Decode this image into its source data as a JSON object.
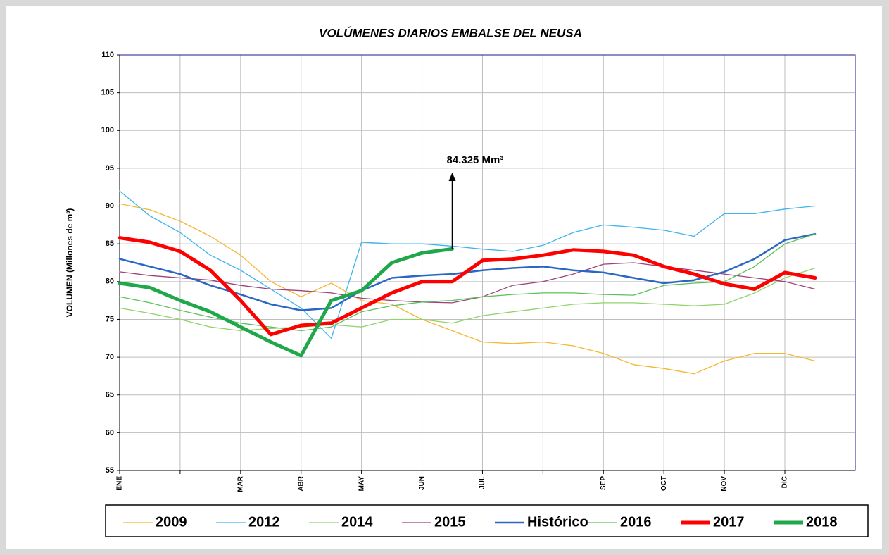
{
  "chart_data": {
    "type": "line",
    "title": "VOLÚMENES DIARIOS EMBALSE DEL NEUSA",
    "y_label": "VOLUMEN (Millones de m³)",
    "categories": [
      "ENE",
      null,
      null,
      null,
      "MAR",
      null,
      "ABR",
      null,
      "MAY",
      null,
      "JUN",
      null,
      "JUL",
      null,
      null,
      null,
      "SEP",
      null,
      "OCT",
      null,
      "NOV",
      null,
      "DIC",
      null
    ],
    "series": [
      {
        "name": "2009",
        "color": "#f5b731",
        "line_width": 1.3,
        "values": [
          90.3,
          89.5,
          88,
          86,
          83.5,
          80,
          78,
          79.8,
          77.5,
          77,
          75,
          73.5,
          72,
          71.8,
          72,
          71.5,
          70.5,
          69,
          68.5,
          67.8,
          69.5,
          70.5,
          70.5,
          69.5
        ]
      },
      {
        "name": "2012",
        "color": "#3cb4ef",
        "line_width": 1.3,
        "values": [
          92,
          88.7,
          86.5,
          83.5,
          81.5,
          79,
          76.5,
          72.5,
          85.2,
          85,
          85,
          84.7,
          84.3,
          84,
          84.8,
          86.5,
          87.5,
          87.2,
          86.8,
          86,
          89,
          89,
          89.6,
          90
        ]
      },
      {
        "name": "2014",
        "color": "#8fd36a",
        "line_width": 1.3,
        "values": [
          76.5,
          75.8,
          75,
          74,
          73.5,
          73.8,
          74,
          74.3,
          74,
          75,
          75,
          74.5,
          75.5,
          76,
          76.5,
          77,
          77.2,
          77.2,
          77,
          76.8,
          77,
          78.5,
          80.5,
          81.8
        ]
      },
      {
        "name": "2015",
        "color": "#a0407a",
        "line_width": 1.3,
        "values": [
          81.3,
          80.8,
          80.5,
          80.2,
          79.5,
          79,
          78.8,
          78.5,
          77.8,
          77.5,
          77.3,
          77.2,
          78,
          79.5,
          80,
          81,
          82.3,
          82.5,
          82,
          81.5,
          81,
          80.5,
          80,
          79
        ]
      },
      {
        "name": "Histórico",
        "color": "#2a66c4",
        "line_width": 2.5,
        "values": [
          83,
          82,
          81,
          79.5,
          78.3,
          77,
          76.2,
          76.5,
          78.8,
          80.5,
          80.8,
          81,
          81.5,
          81.8,
          82,
          81.5,
          81.2,
          80.5,
          79.8,
          80.2,
          81.3,
          83,
          85.5,
          86.3
        ]
      },
      {
        "name": "2016",
        "color": "#5cc05c",
        "line_width": 1.3,
        "values": [
          78,
          77.2,
          76.2,
          75.3,
          74.5,
          74,
          73.5,
          74,
          76,
          76.8,
          77.3,
          77.5,
          78,
          78.3,
          78.5,
          78.5,
          78.3,
          78.2,
          79.5,
          79.8,
          80,
          82,
          85,
          86.3
        ]
      },
      {
        "name": "2017",
        "color": "#ff0000",
        "line_width": 5,
        "values": [
          85.8,
          85.2,
          84,
          81.5,
          77.5,
          73,
          74.2,
          74.5,
          76.5,
          78.5,
          80,
          80,
          82.8,
          83,
          83.5,
          84.2,
          84,
          83.5,
          82,
          81,
          79.7,
          79,
          81.2,
          80.5
        ]
      },
      {
        "name": "2018",
        "color": "#1fa84a",
        "line_width": 5,
        "values": [
          79.8,
          79.2,
          77.5,
          76,
          74,
          72,
          70.2,
          77.5,
          78.8,
          82.5,
          83.8,
          84.325,
          null,
          null,
          null,
          null,
          null,
          null,
          null,
          null,
          null,
          null,
          null,
          null
        ]
      }
    ],
    "annotation": "84.325 Mm³",
    "ylim": [
      55,
      110
    ],
    "yticks": [
      55,
      60,
      65,
      70,
      75,
      80,
      85,
      90,
      95,
      100,
      105,
      110
    ],
    "grid": true
  }
}
